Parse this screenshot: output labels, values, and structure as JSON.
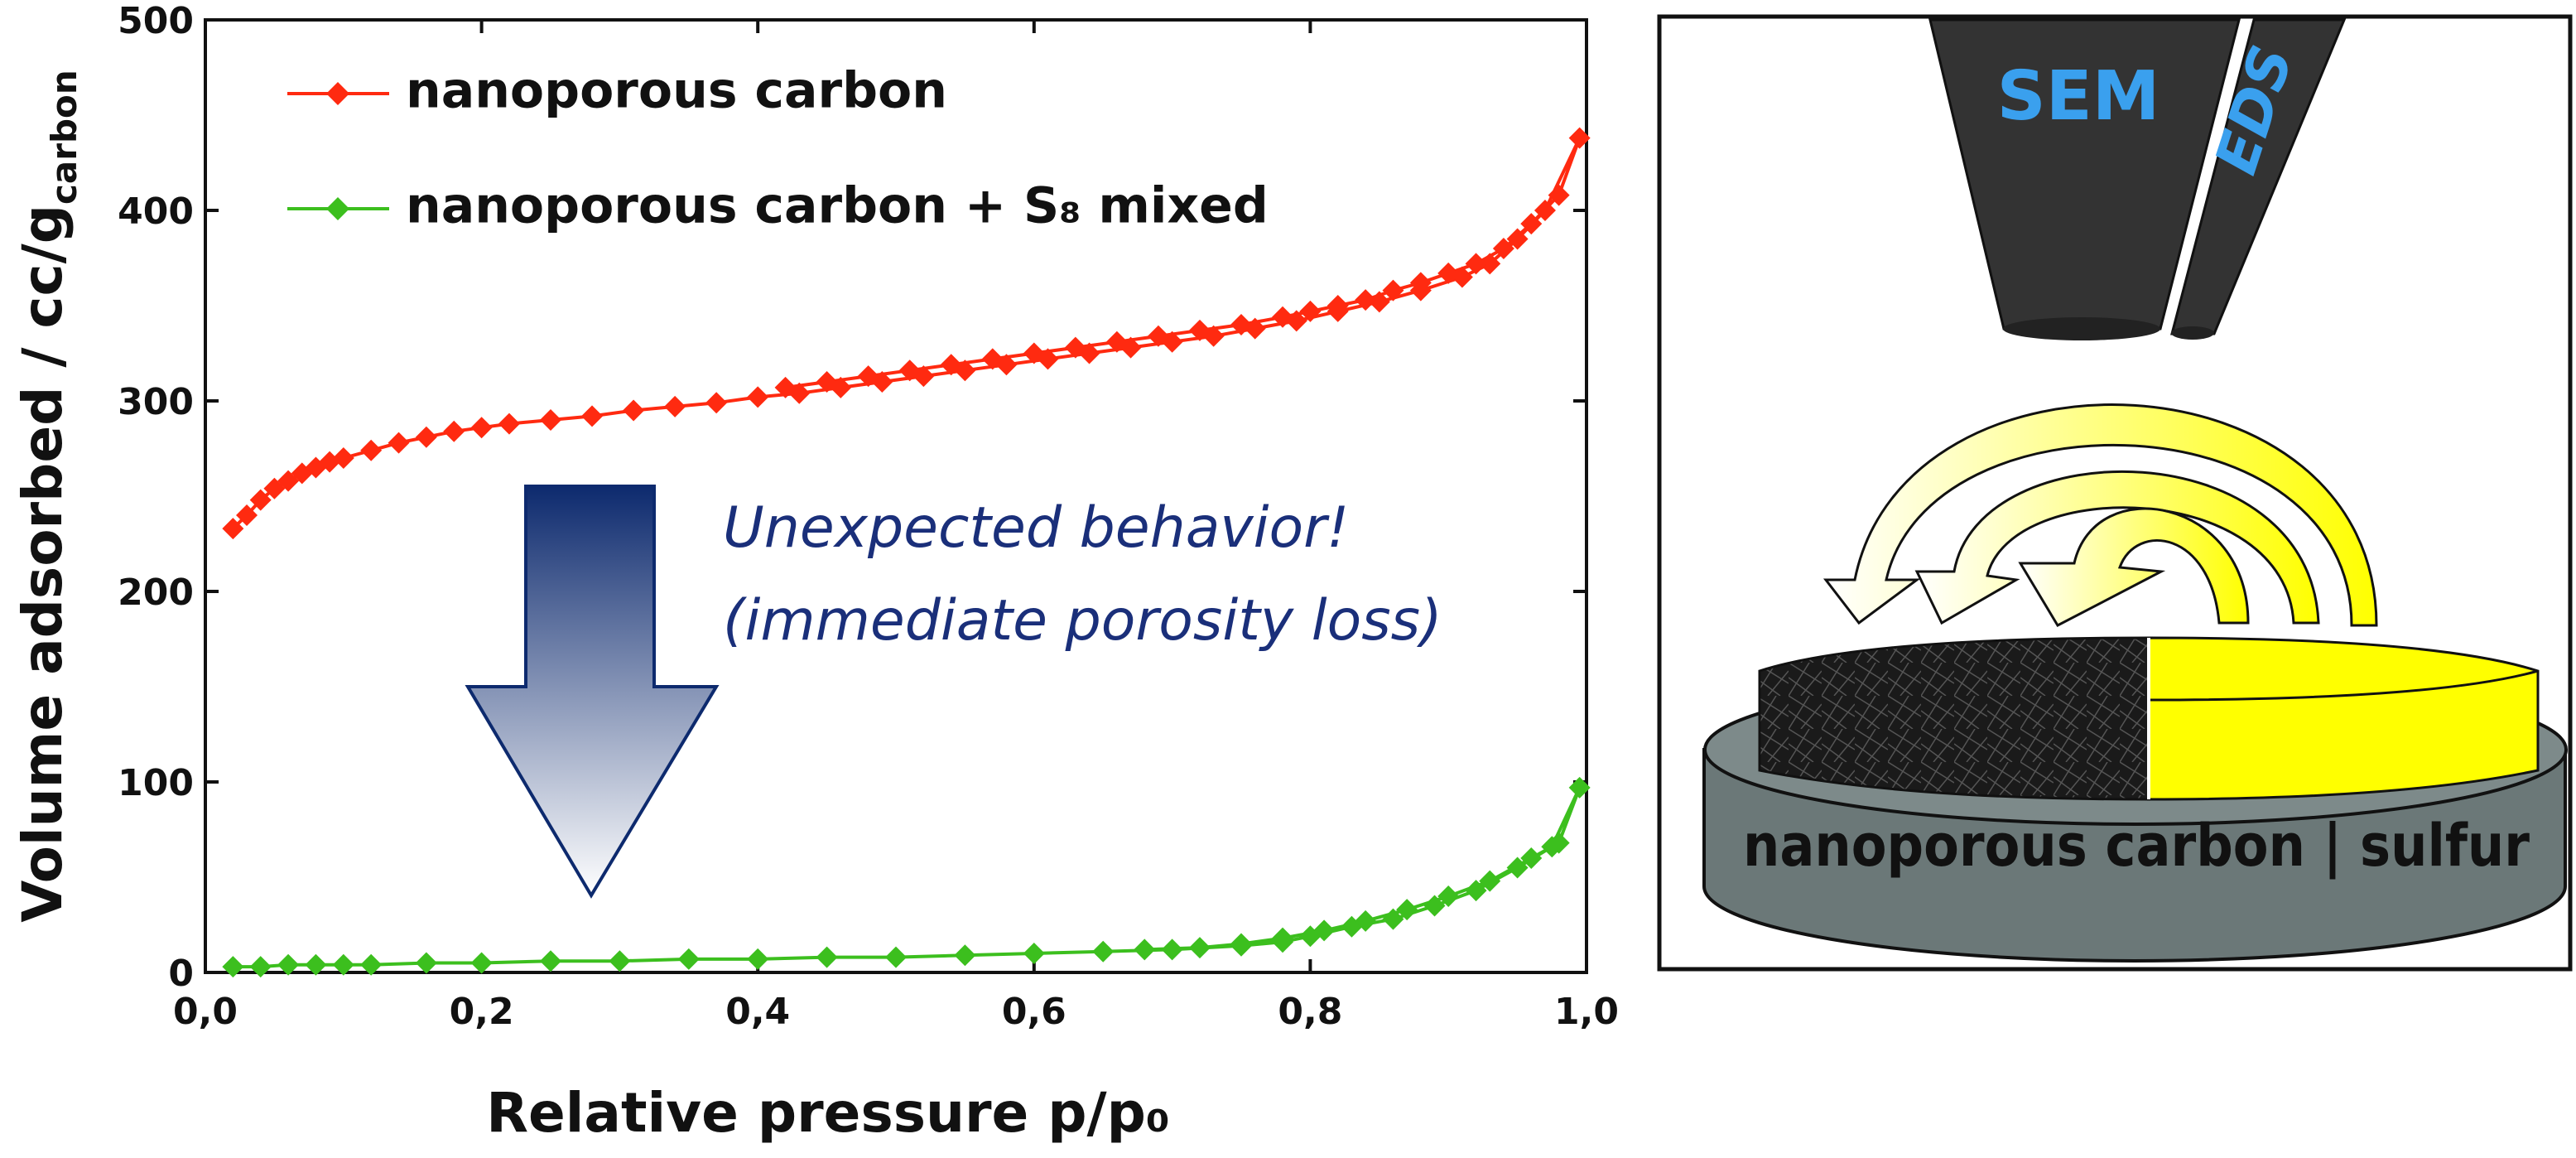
{
  "chart_data": {
    "type": "line",
    "xlabel": "Relative pressure p/p₀",
    "ylabel": "Volume adsorbed / cc/g",
    "ylabel_sub": "carbon",
    "annotations": [
      "Unexpected behavior!",
      "(immediate porosity loss)"
    ],
    "xlim": [
      0,
      1
    ],
    "ylim": [
      0,
      500
    ],
    "xticks": [
      {
        "value": 0,
        "label": "0,0"
      },
      {
        "value": 0.2,
        "label": "0,2"
      },
      {
        "value": 0.4,
        "label": "0,4"
      },
      {
        "value": 0.6,
        "label": "0,6"
      },
      {
        "value": 0.8,
        "label": "0,8"
      },
      {
        "value": 1,
        "label": "1,0"
      }
    ],
    "yticks": [
      0,
      100,
      200,
      300,
      400,
      500
    ],
    "series": [
      {
        "name": "nanoporous carbon",
        "color": "#ff2a10",
        "x": [
          0.02,
          0.03,
          0.04,
          0.05,
          0.06,
          0.07,
          0.08,
          0.09,
          0.1,
          0.12,
          0.14,
          0.16,
          0.18,
          0.2,
          0.22,
          0.25,
          0.28,
          0.31,
          0.34,
          0.37,
          0.4,
          0.43,
          0.46,
          0.49,
          0.52,
          0.55,
          0.58,
          0.61,
          0.64,
          0.67,
          0.7,
          0.73,
          0.76,
          0.79,
          0.82,
          0.85,
          0.88,
          0.91,
          0.93,
          0.95,
          0.97,
          0.995,
          0.98,
          0.96,
          0.94,
          0.92,
          0.9,
          0.88,
          0.86,
          0.84,
          0.82,
          0.8,
          0.78,
          0.75,
          0.72,
          0.69,
          0.66,
          0.63,
          0.6,
          0.57,
          0.54,
          0.51,
          0.48,
          0.45,
          0.42
        ],
        "values": [
          233,
          240,
          248,
          254,
          258,
          262,
          265,
          268,
          270,
          274,
          278,
          281,
          284,
          286,
          288,
          290,
          292,
          295,
          297,
          299,
          302,
          304,
          307,
          310,
          313,
          316,
          319,
          322,
          325,
          328,
          331,
          334,
          338,
          342,
          347,
          352,
          358,
          365,
          372,
          385,
          400,
          438,
          408,
          393,
          380,
          372,
          367,
          362,
          358,
          353,
          350,
          347,
          344,
          340,
          337,
          334,
          331,
          328,
          325,
          322,
          319,
          316,
          313,
          310,
          307
        ]
      },
      {
        "name": "nanoporous carbon + S₈ mixed",
        "color": "#3cbf1e",
        "x": [
          0.02,
          0.04,
          0.06,
          0.08,
          0.1,
          0.12,
          0.16,
          0.2,
          0.25,
          0.3,
          0.35,
          0.4,
          0.45,
          0.5,
          0.55,
          0.6,
          0.65,
          0.7,
          0.75,
          0.78,
          0.8,
          0.83,
          0.86,
          0.89,
          0.92,
          0.95,
          0.975,
          0.995,
          0.98,
          0.96,
          0.93,
          0.9,
          0.87,
          0.84,
          0.81,
          0.78,
          0.75,
          0.72,
          0.68
        ],
        "values": [
          3,
          3,
          4,
          4,
          4,
          4,
          5,
          5,
          6,
          6,
          7,
          7,
          8,
          8,
          9,
          10,
          11,
          12,
          14,
          16,
          19,
          24,
          28,
          35,
          43,
          55,
          66,
          97,
          68,
          60,
          48,
          40,
          33,
          27,
          22,
          18,
          15,
          13,
          12
        ]
      }
    ]
  },
  "diagram": {
    "sem": "SEM",
    "eds": "EDS",
    "sample": "nanoporous carbon | sulfur"
  }
}
